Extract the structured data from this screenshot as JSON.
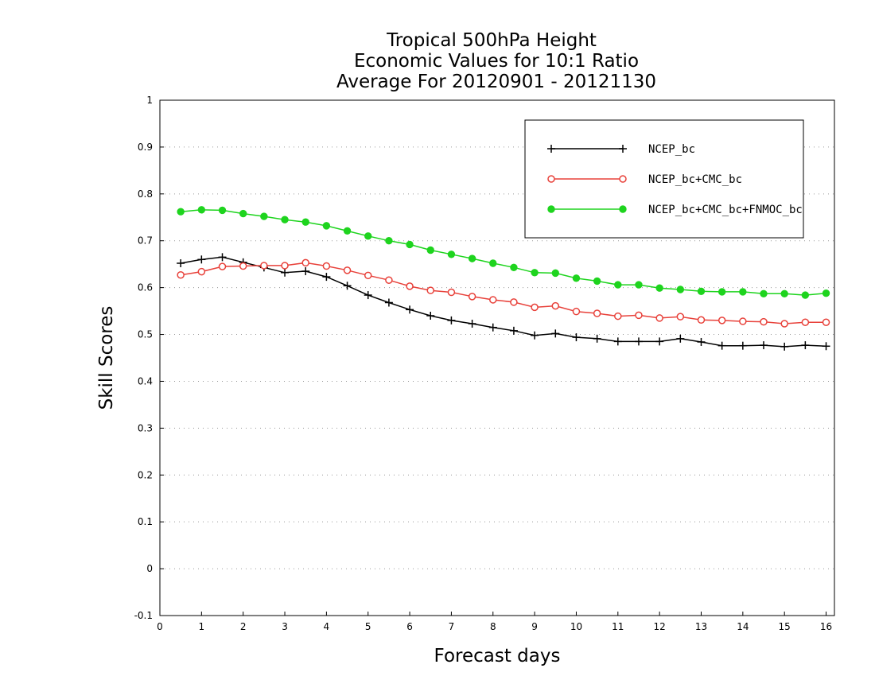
{
  "chart_data": {
    "type": "line",
    "title": [
      "Tropical 500hPa Height",
      "Economic Values for 10:1 Ratio",
      "Average For 20120901 - 20121130"
    ],
    "xlabel": "Forecast days",
    "ylabel": "Skill Scores",
    "xlim": [
      0,
      16.2
    ],
    "ylim": [
      -0.1,
      1
    ],
    "x_ticks": [
      "0",
      "1",
      "2",
      "3",
      "4",
      "5",
      "6",
      "7",
      "8",
      "9",
      "10",
      "11",
      "12",
      "13",
      "14",
      "15",
      "16"
    ],
    "y_ticks": [
      "-0.1",
      "0",
      "0.1",
      "0.2",
      "0.3",
      "0.4",
      "0.5",
      "0.6",
      "0.7",
      "0.8",
      "0.9",
      "1"
    ],
    "grid": "horizontal dotted",
    "legend_position": "top-right",
    "x": [
      0.5,
      1,
      1.5,
      2,
      2.5,
      3,
      3.5,
      4,
      4.5,
      5,
      5.5,
      6,
      6.5,
      7,
      7.5,
      8,
      8.5,
      9,
      9.5,
      10,
      10.5,
      11,
      11.5,
      12,
      12.5,
      13,
      13.5,
      14,
      14.5,
      15,
      15.5,
      16
    ],
    "series": [
      {
        "name": "NCEP_bc",
        "color": "#000000",
        "marker": "plus",
        "values": [
          0.652,
          0.66,
          0.665,
          0.654,
          0.643,
          0.632,
          0.635,
          0.623,
          0.604,
          0.584,
          0.568,
          0.553,
          0.54,
          0.53,
          0.523,
          0.515,
          0.508,
          0.498,
          0.502,
          0.494,
          0.491,
          0.485,
          0.485,
          0.485,
          0.491,
          0.484,
          0.476,
          0.476,
          0.477,
          0.474,
          0.477,
          0.475
        ]
      },
      {
        "name": "NCEP_bc+CMC_bc",
        "color": "#e8413a",
        "marker": "open-circle",
        "values": [
          0.627,
          0.634,
          0.645,
          0.646,
          0.647,
          0.647,
          0.653,
          0.646,
          0.637,
          0.626,
          0.616,
          0.603,
          0.594,
          0.59,
          0.581,
          0.574,
          0.569,
          0.558,
          0.561,
          0.549,
          0.545,
          0.539,
          0.541,
          0.535,
          0.538,
          0.531,
          0.53,
          0.528,
          0.527,
          0.523,
          0.526,
          0.526
        ]
      },
      {
        "name": "NCEP_bc+CMC_bc+FNMOC_bc",
        "color": "#1ed41e",
        "marker": "filled-circle",
        "values": [
          0.762,
          0.766,
          0.765,
          0.758,
          0.752,
          0.745,
          0.74,
          0.732,
          0.721,
          0.71,
          0.7,
          0.692,
          0.68,
          0.671,
          0.662,
          0.652,
          0.643,
          0.632,
          0.631,
          0.62,
          0.614,
          0.606,
          0.606,
          0.599,
          0.596,
          0.592,
          0.591,
          0.591,
          0.587,
          0.587,
          0.584,
          0.588
        ]
      }
    ]
  }
}
